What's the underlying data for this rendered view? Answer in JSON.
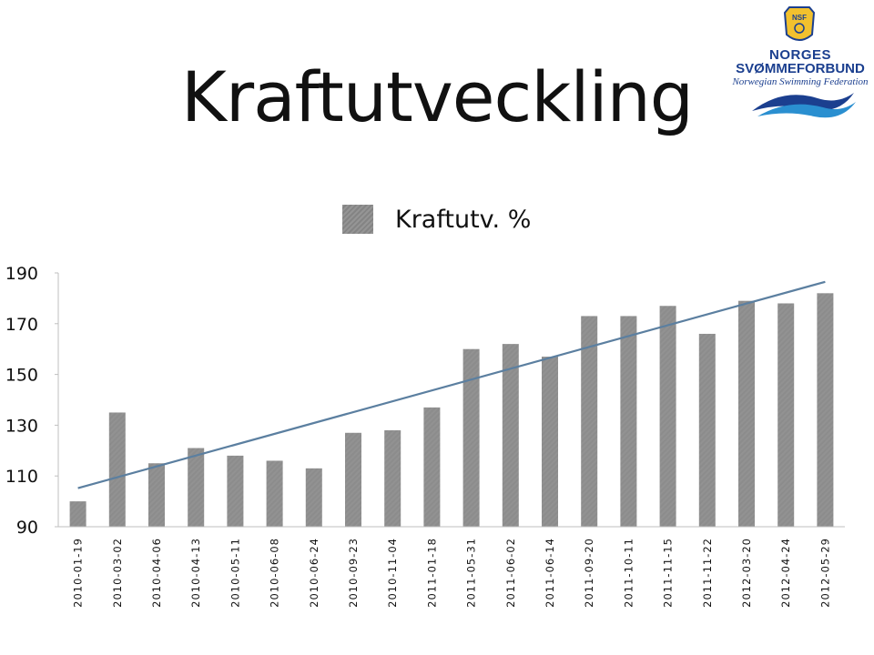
{
  "slide": {
    "title": "Kraftutveckling"
  },
  "logo": {
    "line1": "NORGES",
    "line2": "SVØMMEFORBUND",
    "line3": "Norwegian Swimming Federation",
    "badge_text": "NSF"
  },
  "colors": {
    "bar": "#8c8c8c",
    "trendline": "#5b7fa0",
    "axis": "#bfbfbf",
    "logo_blue": "#1b3f8f",
    "logo_gold": "#f2c12e"
  },
  "chart_data": {
    "type": "bar",
    "title": "",
    "xlabel": "",
    "ylabel": "",
    "ylim": [
      90,
      190
    ],
    "yticks": [
      "90",
      "110",
      "130",
      "150",
      "170",
      "190"
    ],
    "grid": false,
    "legend_position": "top-center",
    "trendline": "linear",
    "categories": [
      "2010-01-19",
      "2010-03-02",
      "2010-04-06",
      "2010-04-13",
      "2010-05-11",
      "2010-06-08",
      "2010-06-24",
      "2010-09-23",
      "2010-11-04",
      "2011-01-18",
      "2011-05-31",
      "2011-06-02",
      "2011-06-14",
      "2011-09-20",
      "2011-10-11",
      "2011-11-15",
      "2011-11-22",
      "2012-03-20",
      "2012-04-24",
      "2012-05-29"
    ],
    "series": [
      {
        "name": "Kraftutv. %",
        "values": [
          100,
          135,
          115,
          121,
          118,
          116,
          113,
          127,
          128,
          137,
          160,
          162,
          157,
          173,
          173,
          177,
          166,
          179,
          178,
          182
        ]
      }
    ]
  }
}
